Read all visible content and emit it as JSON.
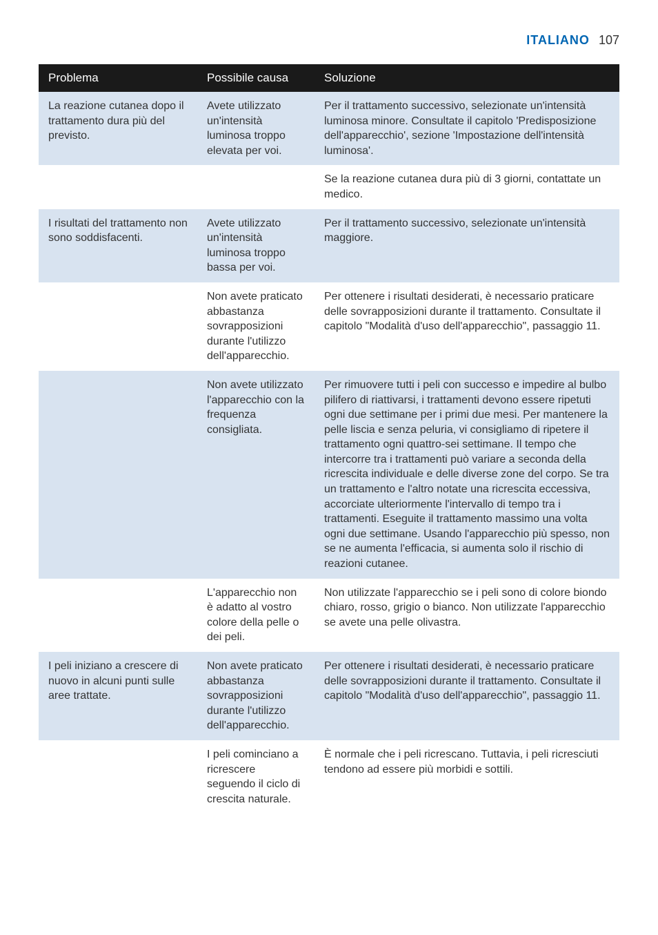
{
  "header": {
    "language": "Italiano",
    "page_number": "107",
    "language_color": "#0066b3",
    "text_color": "#333333"
  },
  "table": {
    "header_bg": "#1a1a1a",
    "header_fg": "#ffffff",
    "shade_bg": "#d8e3f0",
    "plain_bg": "#ffffff",
    "columns": {
      "problema": "Problema",
      "causa": "Possibile causa",
      "soluzione": "Soluzione"
    },
    "rows": [
      {
        "shade": true,
        "problema": "La reazione cutanea dopo il trattamento dura più del previsto.",
        "causa": "Avete utilizzato un'intensità luminosa troppo elevata per voi.",
        "soluzione": "Per il trattamento successivo, selezionate un'intensità luminosa minore. Consultate il capitolo 'Predisposizione dell'apparecchio', sezione 'Impostazione dell'intensità luminosa'."
      },
      {
        "shade": false,
        "problema": "",
        "causa": "",
        "soluzione": "Se la reazione cutanea dura più di 3 giorni, contattate un medico."
      },
      {
        "shade": true,
        "problema": "I risultati del trattamento non sono soddisfacenti.",
        "causa": "Avete utilizzato un'intensità luminosa troppo bassa per voi.",
        "soluzione": "Per il trattamento successivo, selezionate un'intensità maggiore."
      },
      {
        "shade": false,
        "problema": "",
        "causa": "Non avete praticato abbastanza sovrapposizioni durante l'utilizzo dell'apparecchio.",
        "soluzione": "Per ottenere i risultati desiderati, è necessario praticare delle sovrapposizioni durante il trattamento. Consultate il capitolo \"Modalità d'uso dell'apparecchio\", passaggio 11."
      },
      {
        "shade": true,
        "problema": "",
        "causa": "Non avete utilizzato l'apparecchio con la frequenza consigliata.",
        "soluzione": "Per rimuovere tutti i peli con successo e impedire al bulbo pilifero di riattivarsi, i trattamenti devono essere ripetuti ogni due settimane per i primi due mesi. Per mantenere la pelle liscia e senza peluria, vi consigliamo di ripetere il trattamento ogni quattro-sei settimane. Il tempo che intercorre tra i trattamenti può variare a seconda della ricrescita individuale e delle diverse zone del corpo. Se tra un trattamento e l'altro notate una ricrescita eccessiva, accorciate ulteriormente l'intervallo di tempo tra i trattamenti. Eseguite il trattamento massimo una volta ogni due settimane. Usando l'apparecchio più spesso, non se ne aumenta l'efficacia, si aumenta solo il rischio di reazioni cutanee."
      },
      {
        "shade": false,
        "problema": "",
        "causa": "L'apparecchio non è adatto al vostro colore della pelle o dei peli.",
        "soluzione": "Non utilizzate l'apparecchio se i peli sono di colore biondo chiaro, rosso, grigio o bianco. Non utilizzate l'apparecchio se avete una pelle olivastra."
      },
      {
        "shade": true,
        "problema": "I peli iniziano a crescere di nuovo in alcuni punti sulle aree trattate.",
        "causa": "Non avete praticato abbastanza sovrapposizioni durante l'utilizzo dell'apparecchio.",
        "soluzione": "Per ottenere i risultati desiderati, è necessario praticare delle sovrapposizioni durante il trattamento. Consultate il capitolo \"Modalità d'uso dell'apparecchio\", passaggio 11."
      },
      {
        "shade": false,
        "problema": "",
        "causa": "I peli cominciano a ricrescere seguendo il ciclo di crescita naturale.",
        "soluzione": "È normale che i peli ricrescano. Tuttavia, i peli ricresciuti tendono ad essere più morbidi e sottili."
      }
    ]
  }
}
